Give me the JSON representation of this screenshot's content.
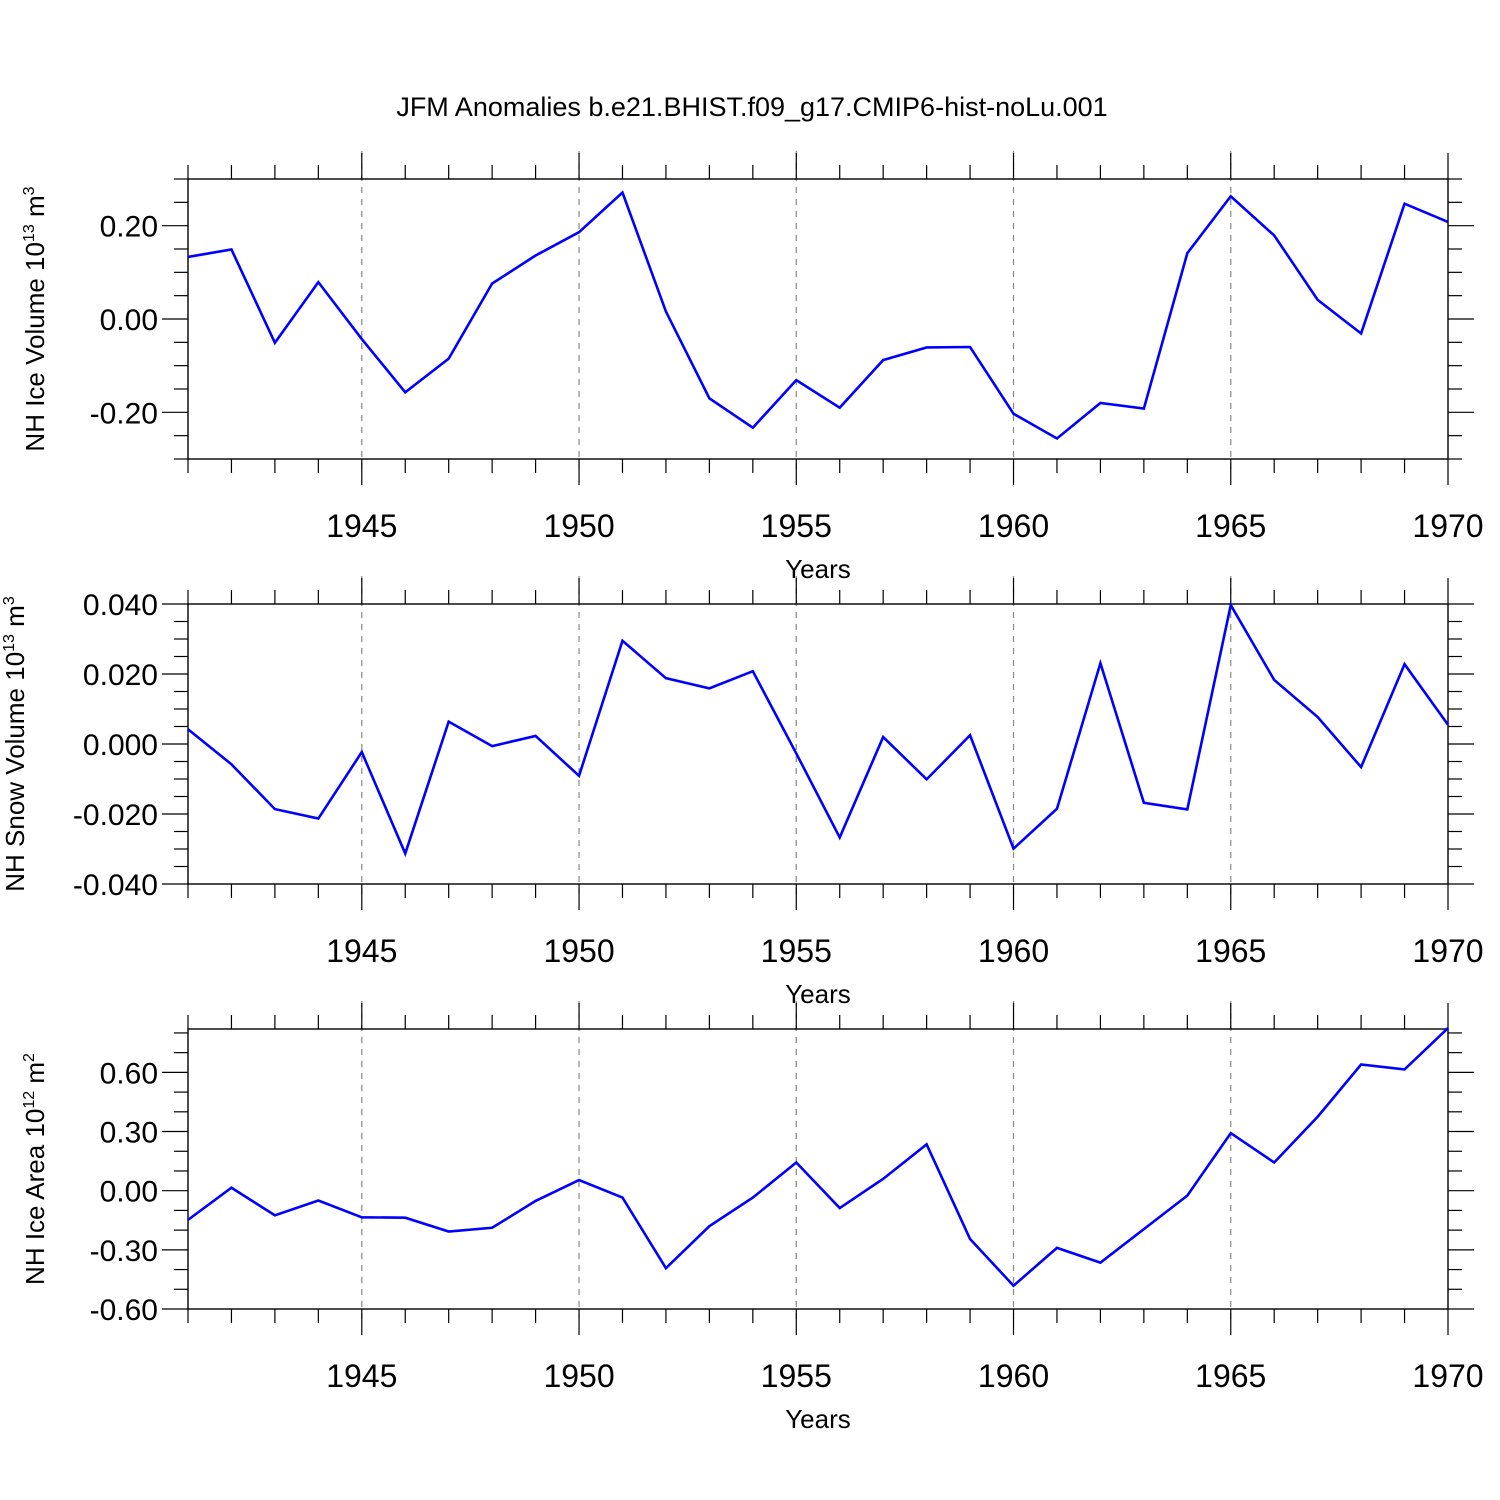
{
  "title": "JFM Anomalies b.e21.BHIST.f09_g17.CMIP6-hist-noLu.001",
  "colors": {
    "line": "#0000ff",
    "grid": "#888888",
    "axis": "#000000"
  },
  "chart_data": [
    {
      "type": "line",
      "xlabel": "Years",
      "ylabel": {
        "text": "NH Ice Volume 10",
        "sup": "13",
        "unit": " m",
        "unit_sup": "3"
      },
      "x": [
        1941,
        1942,
        1943,
        1944,
        1945,
        1946,
        1947,
        1948,
        1949,
        1950,
        1951,
        1952,
        1953,
        1954,
        1955,
        1956,
        1957,
        1958,
        1959,
        1960,
        1961,
        1962,
        1963,
        1964,
        1965,
        1966,
        1967,
        1968,
        1969,
        1970
      ],
      "values": [
        0.133,
        0.149,
        -0.051,
        0.079,
        -0.043,
        -0.157,
        -0.085,
        0.076,
        0.136,
        0.186,
        0.271,
        0.016,
        -0.17,
        -0.233,
        -0.131,
        -0.19,
        -0.088,
        -0.061,
        -0.06,
        -0.203,
        -0.256,
        -0.18,
        -0.192,
        0.141,
        0.263,
        0.179,
        0.041,
        -0.031,
        0.247,
        0.208
      ],
      "xlim": [
        1941,
        1970
      ],
      "ylim": [
        -0.3,
        0.3
      ],
      "xticks": [
        "1945",
        "1950",
        "1955",
        "1960",
        "1965",
        "1970"
      ],
      "yticks": [
        "0.20",
        "0.00",
        "-0.20"
      ],
      "yticks_values": [
        0.2,
        0.0,
        -0.2
      ],
      "yminor_step": 0.05,
      "grid": "vertical dashed at labeled years"
    },
    {
      "type": "line",
      "xlabel": "Years",
      "ylabel": {
        "text": "NH Snow Volume 10",
        "sup": "13",
        "unit": " m",
        "unit_sup": "3"
      },
      "x": [
        1941,
        1942,
        1943,
        1944,
        1945,
        1946,
        1947,
        1948,
        1949,
        1950,
        1951,
        1952,
        1953,
        1954,
        1955,
        1956,
        1957,
        1958,
        1959,
        1960,
        1961,
        1962,
        1963,
        1964,
        1965,
        1966,
        1967,
        1968,
        1969,
        1970
      ],
      "values": [
        0.0042,
        -0.0058,
        -0.0186,
        -0.0213,
        -0.0023,
        -0.0313,
        0.0064,
        -0.0006,
        0.0023,
        -0.0091,
        0.0295,
        0.0188,
        0.0159,
        0.0208,
        -0.0027,
        -0.0267,
        0.002,
        -0.0101,
        0.0025,
        -0.0299,
        -0.0185,
        0.0231,
        -0.0168,
        -0.0187,
        0.0397,
        0.0183,
        0.0077,
        -0.0066,
        0.0228,
        0.0055
      ],
      "xlim": [
        1941,
        1970
      ],
      "ylim": [
        -0.04,
        0.04
      ],
      "xticks": [
        "1945",
        "1950",
        "1955",
        "1960",
        "1965",
        "1970"
      ],
      "yticks": [
        "0.040",
        "0.020",
        "0.000",
        "-0.020",
        "-0.040"
      ],
      "yticks_values": [
        0.04,
        0.02,
        0.0,
        -0.02,
        -0.04
      ],
      "yminor_step": 0.005,
      "grid": "vertical dashed at labeled years"
    },
    {
      "type": "line",
      "xlabel": "Years",
      "ylabel": {
        "text": "NH Ice Area 10",
        "sup": "12",
        "unit": " m",
        "unit_sup": "2"
      },
      "x": [
        1941,
        1942,
        1943,
        1944,
        1945,
        1946,
        1947,
        1948,
        1949,
        1950,
        1951,
        1952,
        1953,
        1954,
        1955,
        1956,
        1957,
        1958,
        1959,
        1960,
        1961,
        1962,
        1963,
        1964,
        1965,
        1966,
        1967,
        1968,
        1969,
        1970
      ],
      "values": [
        -0.148,
        0.015,
        -0.125,
        -0.05,
        -0.135,
        -0.137,
        -0.207,
        -0.188,
        -0.052,
        0.054,
        -0.035,
        -0.393,
        -0.18,
        -0.035,
        0.143,
        -0.088,
        0.06,
        0.235,
        -0.245,
        -0.482,
        -0.29,
        -0.365,
        -0.195,
        -0.025,
        0.292,
        0.143,
        0.375,
        0.64,
        0.615,
        0.825
      ],
      "xlim": [
        1941,
        1970
      ],
      "ylim": [
        -0.6,
        0.82
      ],
      "xticks": [
        "1945",
        "1950",
        "1955",
        "1960",
        "1965",
        "1970"
      ],
      "yticks": [
        "0.60",
        "0.30",
        "0.00",
        "-0.30",
        "-0.60"
      ],
      "yticks_values": [
        0.6,
        0.3,
        0.0,
        -0.3,
        -0.6
      ],
      "yminor_step": 0.1,
      "grid": "vertical dashed at labeled years"
    }
  ]
}
